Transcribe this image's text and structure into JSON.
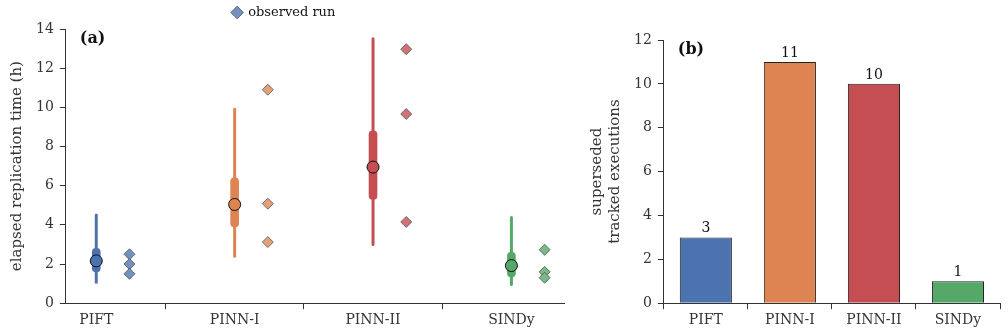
{
  "chart_data": [
    {
      "type": "box",
      "ylabel": "elapsed replication time (h)",
      "categories": [
        "PIFT",
        "PINN-I",
        "PINN-II",
        "SINDy"
      ],
      "boxes": [
        {
          "low": 1.07,
          "q1": 1.6,
          "median": 2.16,
          "q3": 2.8,
          "high": 4.5
        },
        {
          "low": 2.4,
          "q1": 3.9,
          "median": 5.04,
          "q3": 6.4,
          "high": 9.9
        },
        {
          "low": 3.0,
          "q1": 5.3,
          "median": 6.95,
          "q3": 8.8,
          "high": 13.5
        },
        {
          "low": 0.95,
          "q1": 1.34,
          "median": 1.92,
          "q3": 2.6,
          "high": 4.37
        }
      ],
      "colors": [
        "#4c72b0",
        "#dd8452",
        "#c44e52",
        "#55a868"
      ],
      "series": [
        {
          "type": "scatter",
          "name": "observed run",
          "x": [
            "PIFT",
            "PIFT",
            "PIFT",
            "PINN-I",
            "PINN-I",
            "PINN-I",
            "PINN-II",
            "PINN-II",
            "PINN-II",
            "SINDy",
            "SINDy",
            "SINDy"
          ],
          "values": [
            2.5,
            2.0,
            1.5,
            10.9,
            5.08,
            3.12,
            12.97,
            9.66,
            4.15,
            2.73,
            1.6,
            1.3
          ],
          "colors": [
            "#7390c0",
            "#7390c0",
            "#7390c0",
            "#e4a077",
            "#e4a077",
            "#e4a077",
            "#d07378",
            "#d07378",
            "#d07378",
            "#77b987",
            "#77b987",
            "#77b987"
          ]
        }
      ],
      "marker": "diamond",
      "ylim": [
        0,
        14
      ],
      "yticks": [
        0,
        2,
        4,
        6,
        8,
        10,
        12,
        14
      ],
      "legend": "top",
      "annotations": [
        "(a)"
      ]
    },
    {
      "type": "bar",
      "ylabel": "superseded\ntracked executions",
      "categories": [
        "PIFT",
        "PINN-I",
        "PINN-II",
        "SINDy"
      ],
      "values": [
        3,
        11,
        10,
        1
      ],
      "colors": [
        "#4c72b0",
        "#dd8452",
        "#c44e52",
        "#55a868"
      ],
      "data_labels": true,
      "ylim": [
        0,
        12
      ],
      "yticks": [
        0,
        2,
        4,
        6,
        8,
        10,
        12
      ],
      "annotations": [
        "(b)"
      ]
    }
  ]
}
